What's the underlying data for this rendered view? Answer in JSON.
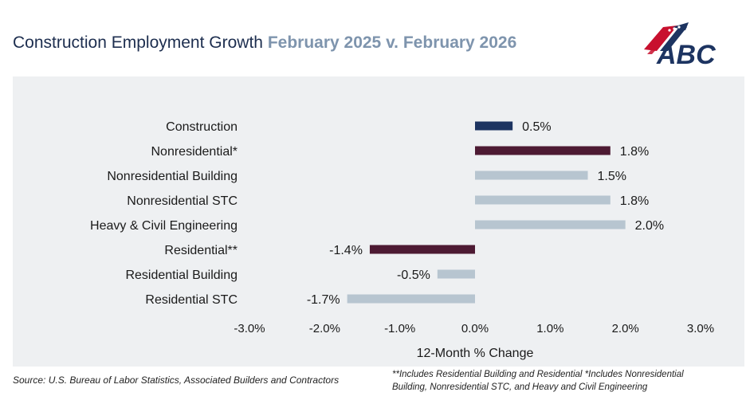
{
  "header": {
    "title": "Construction Employment Growth",
    "subtitle": "February 2025 v. February 2026"
  },
  "logo": {
    "text": "ABC",
    "icon": "abc-flag-logo-icon"
  },
  "colors": {
    "highlight_positive": "#1d3461",
    "highlight_group": "#4d1a33",
    "subcategory": "#b7c5d0",
    "panel": "#eef0f2",
    "text": "#1a1a1a"
  },
  "chart_data": {
    "type": "bar",
    "orientation": "horizontal",
    "categories": [
      "Construction",
      "Nonresidential*",
      "Nonresidential Building",
      "Nonresidential STC",
      "Heavy & Civil Engineering",
      "Residential**",
      "Residential Building",
      "Residential STC"
    ],
    "values": [
      0.5,
      1.8,
      1.5,
      1.8,
      2.0,
      -1.4,
      -0.5,
      -1.7
    ],
    "value_labels": [
      "0.5%",
      "1.8%",
      "1.5%",
      "1.8%",
      "2.0%",
      "-1.4%",
      "-0.5%",
      "-1.7%"
    ],
    "bar_roles": [
      "total",
      "group",
      "sub",
      "sub",
      "sub",
      "group",
      "sub",
      "sub"
    ],
    "xlim": [
      -3.0,
      3.0
    ],
    "x_ticks": [
      -3.0,
      -2.0,
      -1.0,
      0.0,
      1.0,
      2.0,
      3.0
    ],
    "x_tick_labels": [
      "-3.0%",
      "-2.0%",
      "-1.0%",
      "0.0%",
      "1.0%",
      "2.0%",
      "3.0%"
    ],
    "xlabel": "12-Month % Change",
    "grid": false,
    "legend": "none"
  },
  "footer": {
    "source": "Source: U.S. Bureau of Labor Statistics, Associated Builders and Contractors",
    "note_line1": "**Includes Residential Building and Residential *Includes Nonresidential",
    "note_line2": "Building, Nonresidential STC, and Heavy and Civil Engineering"
  }
}
